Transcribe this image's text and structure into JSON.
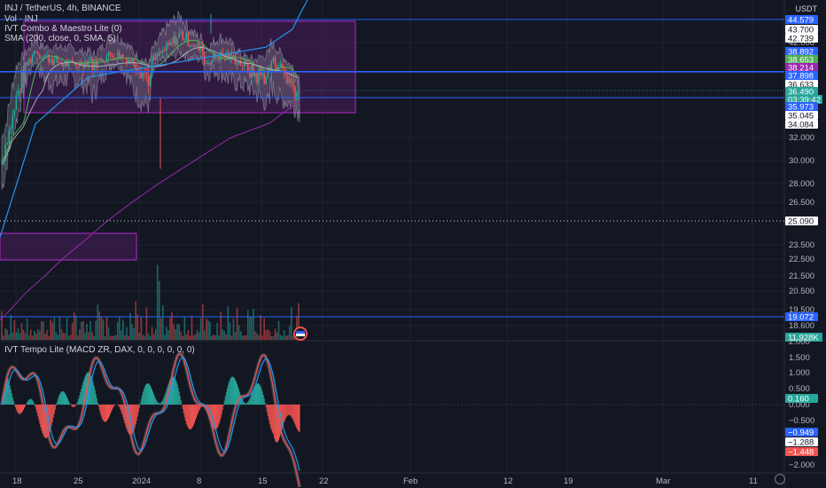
{
  "header": {
    "symbol_line": "INJ / TetherUS, 4h, BINANCE",
    "indicators": [
      "Vol · INJ",
      "IVT Combo & Maestro Lite (0)",
      "SMA (200, close, 0, SMA, 5)"
    ],
    "currency": "USDT"
  },
  "lower_pane": {
    "title": "IVT Tempo Lite (MACD ZR, DAX, 0, 0, 0, 0, 0, 0)"
  },
  "price_axis_labels": [
    "42.000",
    "32.000",
    "30.000",
    "28.000",
    "26.500",
    "23.500",
    "22.500",
    "21.500",
    "20.500",
    "19.500",
    "18.600"
  ],
  "price_tags": [
    {
      "value": "44.579",
      "bg": "#2962ff",
      "fg": "#ffffff"
    },
    {
      "value": "43.700",
      "bg": "#ffffff",
      "fg": "#131722"
    },
    {
      "value": "42.739",
      "bg": "#ffffff",
      "fg": "#131722"
    },
    {
      "value": "38.892",
      "bg": "#2962ff",
      "fg": "#ffffff"
    },
    {
      "value": "38.653",
      "bg": "#4caf50",
      "fg": "#ffffff"
    },
    {
      "value": "38.214",
      "bg": "#9c27b0",
      "fg": "#ffffff"
    },
    {
      "value": "37.898",
      "bg": "#2962ff",
      "fg": "#ffffff"
    },
    {
      "value": "36.633",
      "bg": "#ffffff",
      "fg": "#131722"
    },
    {
      "value": "36.490",
      "bg": "#26a69a",
      "fg": "#ffffff"
    },
    {
      "value": "03:39:42",
      "bg": "#26a69a",
      "fg": "#ffffff"
    },
    {
      "value": "35.973",
      "bg": "#2962ff",
      "fg": "#ffffff"
    },
    {
      "value": "35.045",
      "bg": "#ffffff",
      "fg": "#131722"
    },
    {
      "value": "34.084",
      "bg": "#ffffff",
      "fg": "#131722"
    },
    {
      "value": "25.090",
      "bg": "#ffffff",
      "fg": "#131722"
    },
    {
      "value": "19.072",
      "bg": "#2962ff",
      "fg": "#ffffff"
    },
    {
      "value": "11.928K",
      "bg": "#26a69a",
      "fg": "#ffffff"
    }
  ],
  "macd_axis_labels": [
    "2.000",
    "1.500",
    "1.000",
    "0.500",
    "0.000",
    "−0.500",
    "−1.500",
    "−2.000"
  ],
  "macd_tags": [
    {
      "value": "0.160",
      "bg": "#26a69a",
      "fg": "#ffffff"
    },
    {
      "value": "−0.949",
      "bg": "#2962ff",
      "fg": "#ffffff"
    },
    {
      "value": "−1.288",
      "bg": "#ffffff",
      "fg": "#131722"
    },
    {
      "value": "−1.448",
      "bg": "#ef5350",
      "fg": "#ffffff"
    }
  ],
  "time_axis_labels": [
    "18",
    "25",
    "2024",
    "8",
    "15",
    "22",
    "Feb",
    "12",
    "19",
    "Mar",
    "11"
  ],
  "colors": {
    "background": "#131722",
    "up": "#26a69a",
    "down": "#ef5350",
    "level_line": "#2962ff",
    "zone": "#9c27b0",
    "sma": "#9c27b0",
    "grid": "#1e222d"
  },
  "icons": [
    "flag-icon",
    "gear-icon"
  ]
}
